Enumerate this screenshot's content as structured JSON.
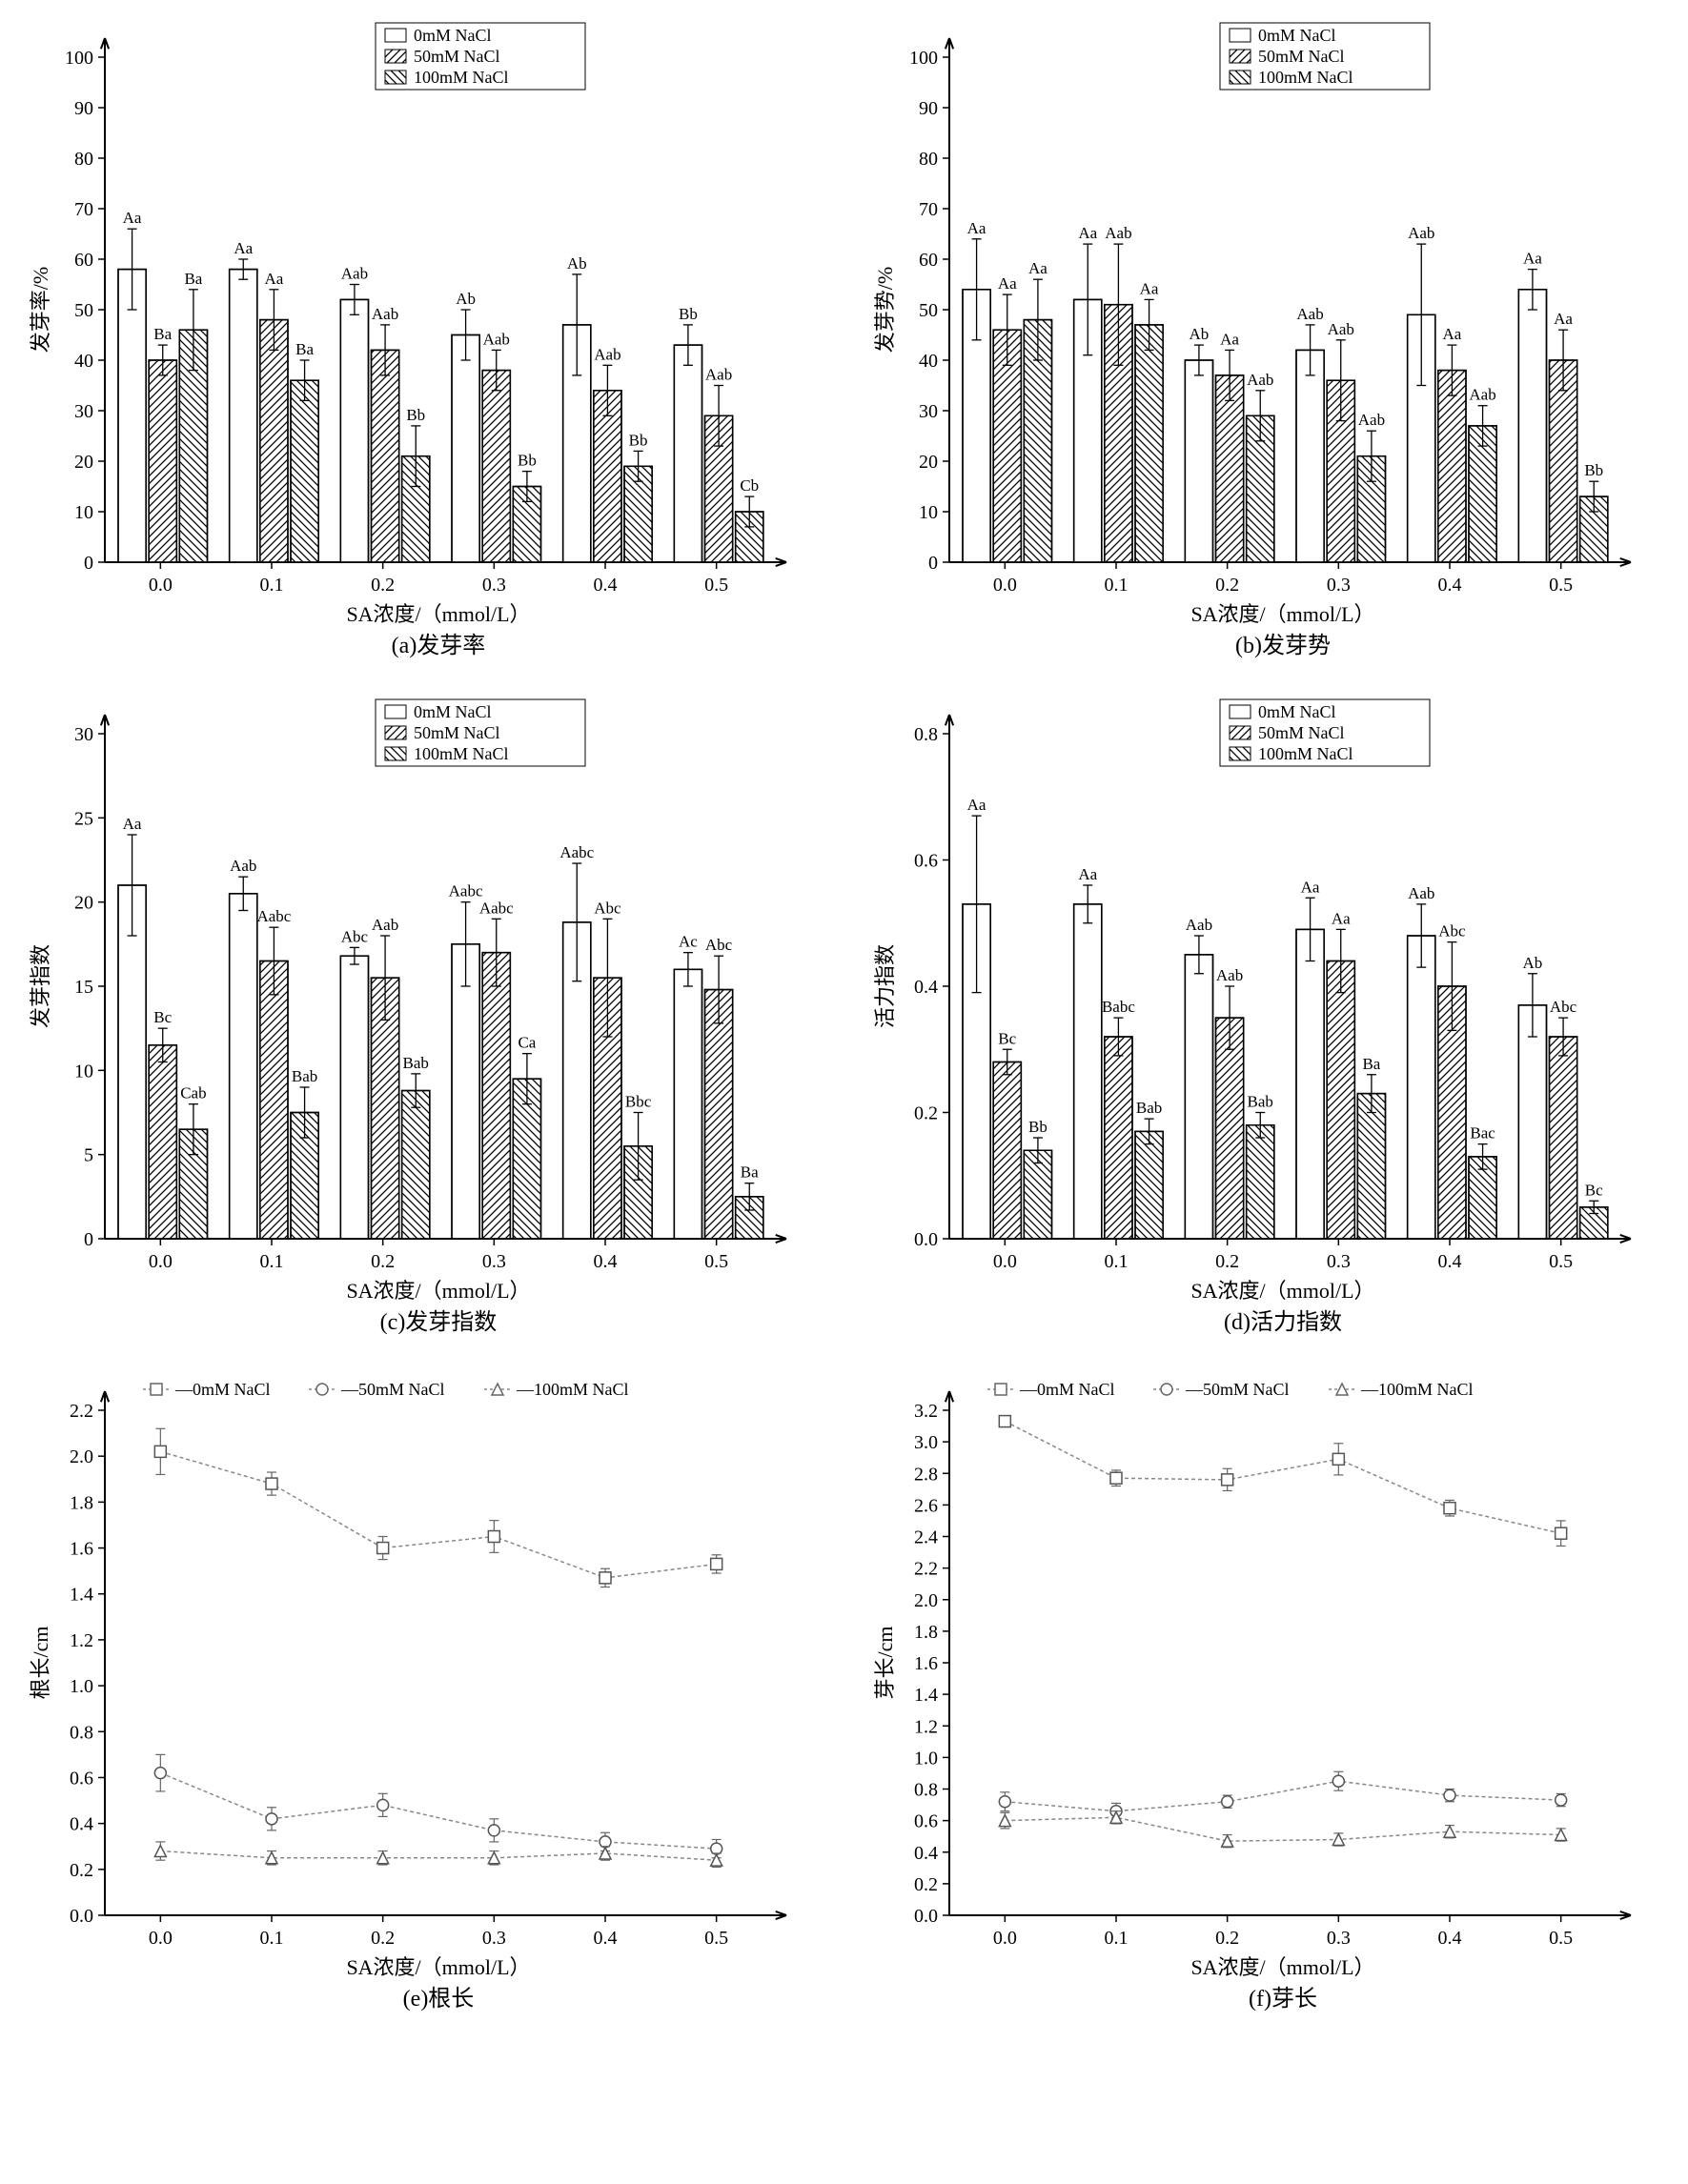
{
  "common": {
    "xlabel": "SA浓度/（mmol/L）",
    "categories": [
      "0.0",
      "0.1",
      "0.2",
      "0.3",
      "0.4",
      "0.5"
    ],
    "legend_bar": [
      "0mM NaCl",
      "50mM NaCl",
      "100mM NaCl"
    ],
    "legend_line": [
      "0mM NaCl",
      "50mM NaCl",
      "100mM NaCl"
    ],
    "colors": {
      "bg": "#ffffff",
      "axis": "#000000",
      "bar_stroke": "#000000",
      "line": "#888888",
      "marker_fill": "#ffffff"
    },
    "font": {
      "axis_label": 22,
      "tick": 20,
      "legend": 18,
      "sig": 17,
      "caption": 24
    },
    "bar": {
      "group_gap": 0.18,
      "bar_gap": 0.02,
      "bar_w": 0.25
    },
    "patterns": {
      "s0": "none",
      "s1": "diag45",
      "s2": "diag135"
    }
  },
  "panels": {
    "a": {
      "caption": "(a)发芽率",
      "ylabel": "发芽率/%",
      "ylim": [
        0,
        100
      ],
      "ytick": 10,
      "type": "bar",
      "series": [
        {
          "vals": [
            58,
            58,
            52,
            45,
            47,
            43
          ],
          "err": [
            8,
            2,
            3,
            5,
            10,
            4
          ],
          "sig": [
            "Aa",
            "Aa",
            "Aab",
            "Ab",
            "Ab",
            "Bb"
          ]
        },
        {
          "vals": [
            40,
            48,
            42,
            38,
            34,
            29
          ],
          "err": [
            3,
            6,
            5,
            4,
            5,
            6
          ],
          "sig": [
            "Ba",
            "Aa",
            "Aab",
            "Aab",
            "Aab",
            "Aab"
          ]
        },
        {
          "vals": [
            46,
            36,
            21,
            15,
            19,
            10
          ],
          "err": [
            8,
            4,
            6,
            3,
            3,
            3
          ],
          "sig": [
            "Ba",
            "Ba",
            "Bb",
            "Bb",
            "Bb",
            "Cb"
          ]
        }
      ]
    },
    "b": {
      "caption": "(b)发芽势",
      "ylabel": "发芽势/%",
      "ylim": [
        0,
        100
      ],
      "ytick": 10,
      "type": "bar",
      "series": [
        {
          "vals": [
            54,
            52,
            40,
            42,
            49,
            54
          ],
          "err": [
            10,
            11,
            3,
            5,
            14,
            4
          ],
          "sig": [
            "Aa",
            "Aa",
            "Ab",
            "Aab",
            "Aab",
            "Aa"
          ]
        },
        {
          "vals": [
            46,
            51,
            37,
            36,
            38,
            40
          ],
          "err": [
            7,
            12,
            5,
            8,
            5,
            6
          ],
          "sig": [
            "Aa",
            "Aab",
            "Aa",
            "Aab",
            "Aa",
            "Aa"
          ]
        },
        {
          "vals": [
            48,
            47,
            29,
            21,
            27,
            13
          ],
          "err": [
            8,
            5,
            5,
            5,
            4,
            3
          ],
          "sig": [
            "Aa",
            "Aa",
            "Aab",
            "Aab",
            "Aab",
            "Bb"
          ]
        }
      ]
    },
    "c": {
      "caption": "(c)发芽指数",
      "ylabel": "发芽指数",
      "ylim": [
        0,
        30
      ],
      "ytick": 5,
      "type": "bar",
      "series": [
        {
          "vals": [
            21,
            20.5,
            16.8,
            17.5,
            18.8,
            16
          ],
          "err": [
            3,
            1,
            0.5,
            2.5,
            3.5,
            1
          ],
          "sig": [
            "Aa",
            "Aab",
            "Abc",
            "Aabc",
            "Aabc",
            "Ac"
          ]
        },
        {
          "vals": [
            11.5,
            16.5,
            15.5,
            17,
            15.5,
            14.8
          ],
          "err": [
            1,
            2,
            2.5,
            2,
            3.5,
            2
          ],
          "sig": [
            "Bc",
            "Aabc",
            "Aab",
            "Aabc",
            "Abc",
            "Abc"
          ]
        },
        {
          "vals": [
            6.5,
            7.5,
            8.8,
            9.5,
            5.5,
            2.5
          ],
          "err": [
            1.5,
            1.5,
            1,
            1.5,
            2,
            0.8
          ],
          "sig": [
            "Cab",
            "Bab",
            "Bab",
            "Ca",
            "Bbc",
            "Ba"
          ]
        }
      ]
    },
    "d": {
      "caption": "(d)活力指数",
      "ylabel": "活力指数",
      "ylim": [
        0,
        0.8
      ],
      "ytick": 0.2,
      "type": "bar",
      "series": [
        {
          "vals": [
            0.53,
            0.53,
            0.45,
            0.49,
            0.48,
            0.37
          ],
          "err": [
            0.14,
            0.03,
            0.03,
            0.05,
            0.05,
            0.05
          ],
          "sig": [
            "Aa",
            "Aa",
            "Aab",
            "Aa",
            "Aab",
            "Ab"
          ]
        },
        {
          "vals": [
            0.28,
            0.32,
            0.35,
            0.44,
            0.4,
            0.32
          ],
          "err": [
            0.02,
            0.03,
            0.05,
            0.05,
            0.07,
            0.03
          ],
          "sig": [
            "Bc",
            "Babc",
            "Aab",
            "Aa",
            "Abc",
            "Abc"
          ]
        },
        {
          "vals": [
            0.14,
            0.17,
            0.18,
            0.23,
            0.13,
            0.05
          ],
          "err": [
            0.02,
            0.02,
            0.02,
            0.03,
            0.02,
            0.01
          ],
          "sig": [
            "Bb",
            "Bab",
            "Bab",
            "Ba",
            "Bac",
            "Bc"
          ]
        }
      ]
    },
    "e": {
      "caption": "(e)根长",
      "ylabel": "根长/cm",
      "ylim": [
        0,
        2.2
      ],
      "ytick": 0.2,
      "type": "line",
      "series": [
        {
          "marker": "square",
          "vals": [
            2.02,
            1.88,
            1.6,
            1.65,
            1.47,
            1.53
          ],
          "err": [
            0.1,
            0.05,
            0.05,
            0.07,
            0.04,
            0.04
          ]
        },
        {
          "marker": "circle",
          "vals": [
            0.62,
            0.42,
            0.48,
            0.37,
            0.32,
            0.29
          ],
          "err": [
            0.08,
            0.05,
            0.05,
            0.05,
            0.04,
            0.04
          ]
        },
        {
          "marker": "triangle",
          "vals": [
            0.28,
            0.25,
            0.25,
            0.25,
            0.27,
            0.24
          ],
          "err": [
            0.04,
            0.03,
            0.03,
            0.03,
            0.03,
            0.03
          ]
        }
      ]
    },
    "f": {
      "caption": "(f)芽长",
      "ylabel": "芽长/cm",
      "ylim": [
        0,
        3.2
      ],
      "ytick": 0.2,
      "type": "line",
      "series": [
        {
          "marker": "square",
          "vals": [
            3.13,
            2.77,
            2.76,
            2.89,
            2.58,
            2.42
          ],
          "err": [
            0.03,
            0.05,
            0.07,
            0.1,
            0.05,
            0.08
          ]
        },
        {
          "marker": "circle",
          "vals": [
            0.72,
            0.66,
            0.72,
            0.85,
            0.76,
            0.73
          ],
          "err": [
            0.06,
            0.05,
            0.04,
            0.06,
            0.04,
            0.04
          ]
        },
        {
          "marker": "triangle",
          "vals": [
            0.6,
            0.62,
            0.47,
            0.48,
            0.53,
            0.51
          ],
          "err": [
            0.05,
            0.04,
            0.04,
            0.04,
            0.04,
            0.04
          ]
        }
      ]
    }
  }
}
